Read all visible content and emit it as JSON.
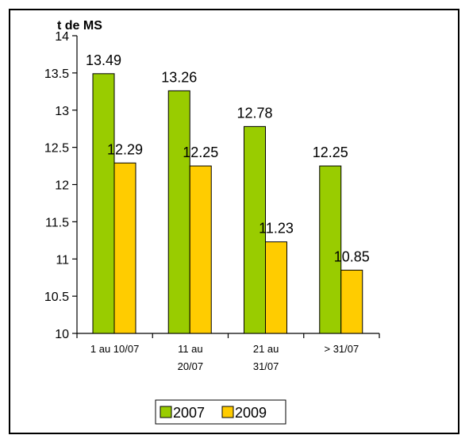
{
  "chart_data": {
    "type": "bar",
    "ylabel": "t de MS",
    "xlabel": "",
    "ylim": [
      10,
      14
    ],
    "yticks": [
      10,
      10.5,
      11,
      11.5,
      12,
      12.5,
      13,
      13.5,
      14
    ],
    "categories": [
      [
        "1 au 10/07"
      ],
      [
        "11 au",
        "20/07"
      ],
      [
        "21 au",
        "31/07"
      ],
      [
        "> 31/07"
      ]
    ],
    "series": [
      {
        "name": "2007",
        "color": "#99cc00",
        "values": [
          13.49,
          13.26,
          12.78,
          12.25
        ]
      },
      {
        "name": "2009",
        "color": "#ffcc00",
        "values": [
          12.29,
          12.25,
          11.23,
          10.85
        ]
      }
    ],
    "legend": "bottom",
    "grid": false,
    "data_labels": true
  }
}
